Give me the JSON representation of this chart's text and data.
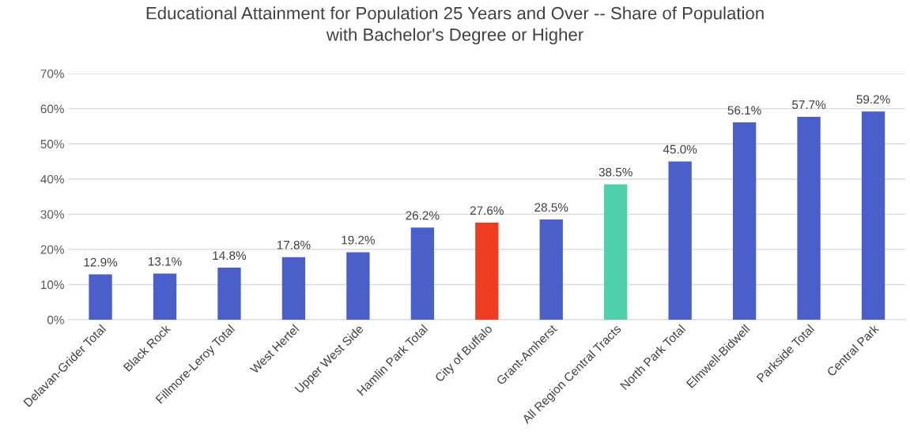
{
  "chart_data": {
    "type": "bar",
    "title": "Educational Attainment for Population 25 Years and Over -- Share of Population\nwith Bachelor's Degree or Higher",
    "categories": [
      "Delavan-Grider Total",
      "Black Rock",
      "Fillmore-Leroy Total",
      "West Hertel",
      "Upper West Side",
      "Hamlin Park Total",
      "City of Buffalo",
      "Grant-Amherst",
      "All Region Central Tracts",
      "North Park Total",
      "Elmwell-Bidwell",
      "Parkside Total",
      "Central Park"
    ],
    "values": [
      12.9,
      13.1,
      14.8,
      17.8,
      19.2,
      26.2,
      27.6,
      28.5,
      38.5,
      45.0,
      56.1,
      57.7,
      59.2
    ],
    "value_labels": [
      "12.9%",
      "13.1%",
      "14.8%",
      "17.8%",
      "19.2%",
      "26.2%",
      "27.6%",
      "28.5%",
      "38.5%",
      "45.0%",
      "56.1%",
      "57.7%",
      "59.2%"
    ],
    "colors": [
      "#4a5fc9",
      "#4a5fc9",
      "#4a5fc9",
      "#4a5fc9",
      "#4a5fc9",
      "#4a5fc9",
      "#f03c23",
      "#4a5fc9",
      "#4fcfaa",
      "#4a5fc9",
      "#4a5fc9",
      "#4a5fc9",
      "#4a5fc9"
    ],
    "ylim": [
      0,
      70
    ],
    "yticks": [
      {
        "value": 0,
        "label": "0%"
      },
      {
        "value": 10,
        "label": "10%"
      },
      {
        "value": 20,
        "label": "20%"
      },
      {
        "value": 30,
        "label": "30%"
      },
      {
        "value": 40,
        "label": "40%"
      },
      {
        "value": 50,
        "label": "50%"
      },
      {
        "value": 60,
        "label": "60%"
      },
      {
        "value": 70,
        "label": "70%"
      }
    ],
    "grid": "y",
    "legend": false
  }
}
